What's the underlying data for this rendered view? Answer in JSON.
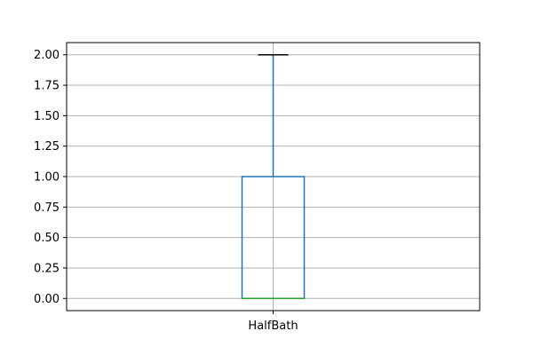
{
  "chart_data": {
    "type": "boxplot",
    "categories": [
      "HalfBath"
    ],
    "series": [
      {
        "whisker_low": 0.0,
        "q1": 0.0,
        "median": 0.0,
        "q3": 1.0,
        "whisker_high": 2.0
      }
    ],
    "yticks": [
      0.0,
      0.25,
      0.5,
      0.75,
      1.0,
      1.25,
      1.5,
      1.75,
      2.0
    ],
    "ytick_labels": [
      "0.00",
      "0.25",
      "0.50",
      "0.75",
      "1.00",
      "1.25",
      "1.50",
      "1.75",
      "2.00"
    ],
    "ylim": [
      -0.1,
      2.1
    ],
    "grid": true,
    "colors": {
      "box": "#1f77b4",
      "median": "#2ca02c",
      "cap": "#000000",
      "grid": "#b0b0b0",
      "frame": "#000000"
    }
  }
}
